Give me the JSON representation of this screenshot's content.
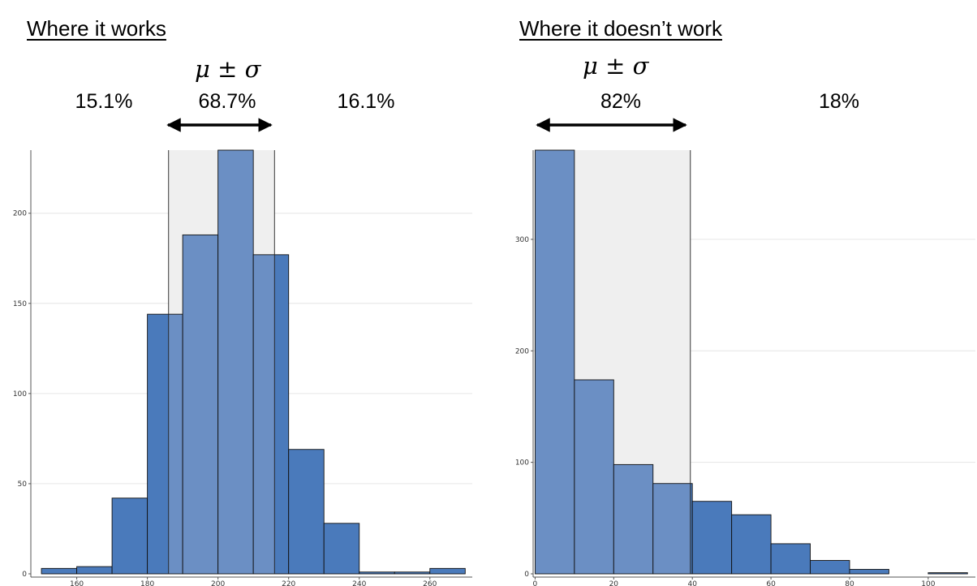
{
  "left": {
    "title": "Where it works",
    "mu_label": "μ ± σ",
    "pct_below": "15.1%",
    "pct_within": "68.7%",
    "pct_above": "16.1%"
  },
  "right": {
    "title": "Where it doesn’t work",
    "mu_label": "μ ± σ",
    "pct_within": "82%",
    "pct_above": "18%"
  },
  "colors": {
    "bar_outside": "#4a7abb",
    "bar_inside": "#6b8fc4",
    "band": "#efefef",
    "grid": "#e6e6e6"
  },
  "chart_data": [
    {
      "type": "bar",
      "title": "Where it works",
      "bin_edges": [
        150,
        160,
        170,
        180,
        190,
        200,
        210,
        220,
        230,
        240,
        250,
        260,
        270
      ],
      "values": [
        3,
        4,
        42,
        144,
        188,
        241,
        177,
        69,
        28,
        1,
        1,
        3
      ],
      "band": [
        186,
        216
      ],
      "xlim": [
        147,
        272
      ],
      "ylim": [
        0,
        235
      ],
      "xticks": [
        160,
        180,
        200,
        220,
        240,
        260
      ],
      "yticks": [
        0,
        50,
        100,
        150,
        200
      ],
      "grid": true
    },
    {
      "type": "bar",
      "title": "Where it doesn’t work",
      "bin_edges": [
        0,
        10,
        20,
        30,
        40,
        50,
        60,
        70,
        80,
        90,
        100,
        110
      ],
      "values": [
        380,
        174,
        98,
        81,
        65,
        53,
        27,
        12,
        4,
        0,
        1
      ],
      "band": [
        0,
        39.5
      ],
      "xlim": [
        -0.5,
        112
      ],
      "ylim": [
        0,
        380
      ],
      "xticks": [
        0,
        20,
        40,
        60,
        80,
        100
      ],
      "yticks": [
        0,
        100,
        200,
        300
      ],
      "grid": true
    }
  ]
}
